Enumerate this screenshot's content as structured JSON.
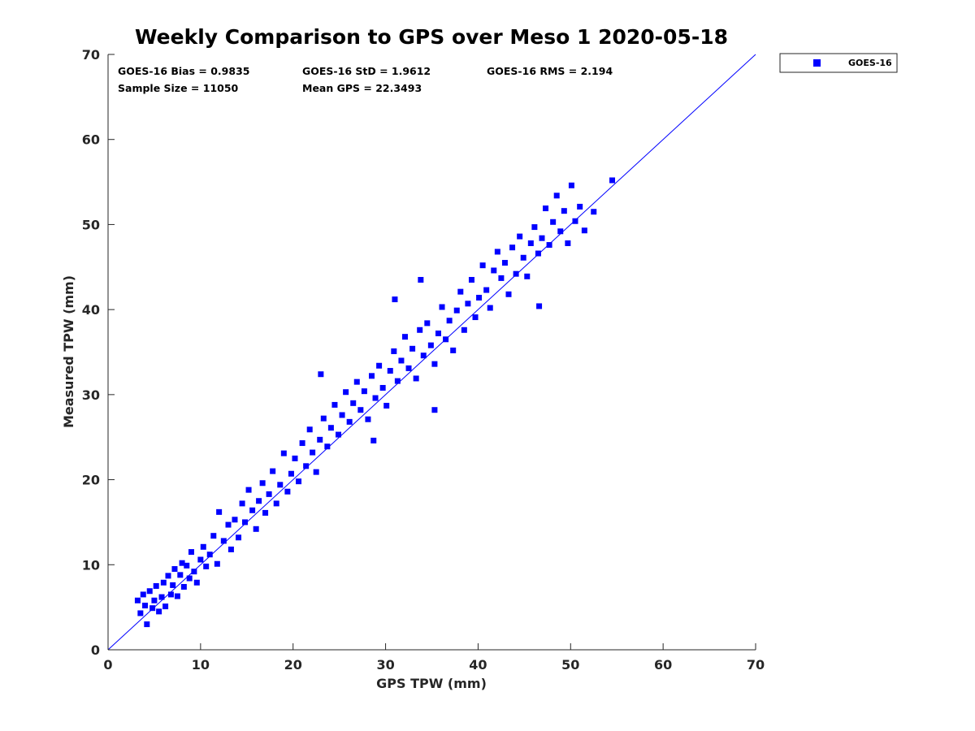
{
  "chart_data": {
    "type": "scatter",
    "title": "Weekly Comparison to GPS over Meso 1 2020-05-18",
    "xlabel": "GPS TPW (mm)",
    "ylabel": "Measured TPW (mm)",
    "xlim": [
      0,
      70
    ],
    "ylim": [
      0,
      70
    ],
    "xticks": [
      "0",
      "10",
      "20",
      "30",
      "40",
      "50",
      "60",
      "70"
    ],
    "yticks": [
      "0",
      "10",
      "20",
      "30",
      "40",
      "50",
      "60",
      "70"
    ],
    "grid": false,
    "legend_position": "outside top-right",
    "stats": [
      "GOES-16 Bias = 0.9835",
      "GOES-16 StD = 1.9612",
      "GOES-16 RMS = 2.194",
      "Sample Size = 11050",
      "Mean GPS = 22.3493"
    ],
    "reference_line": {
      "type": "one-to-one",
      "from": [
        0,
        0
      ],
      "to": [
        70,
        70
      ],
      "color": "#0000ff"
    },
    "series": [
      {
        "name": "GOES-16",
        "color": "#0000ff",
        "marker": "square",
        "points": [
          [
            3.2,
            5.8
          ],
          [
            3.5,
            4.3
          ],
          [
            3.8,
            6.5
          ],
          [
            4.0,
            5.2
          ],
          [
            4.2,
            3.0
          ],
          [
            4.5,
            6.9
          ],
          [
            4.8,
            4.9
          ],
          [
            5.0,
            5.8
          ],
          [
            5.2,
            7.5
          ],
          [
            5.5,
            4.5
          ],
          [
            5.8,
            6.2
          ],
          [
            6.0,
            7.9
          ],
          [
            6.2,
            5.1
          ],
          [
            6.5,
            8.7
          ],
          [
            6.8,
            6.5
          ],
          [
            7.0,
            7.6
          ],
          [
            7.2,
            9.5
          ],
          [
            7.5,
            6.3
          ],
          [
            7.8,
            8.8
          ],
          [
            8.0,
            10.2
          ],
          [
            8.2,
            7.4
          ],
          [
            8.5,
            9.9
          ],
          [
            8.8,
            8.4
          ],
          [
            9.0,
            11.5
          ],
          [
            9.3,
            9.2
          ],
          [
            9.6,
            7.9
          ],
          [
            10.0,
            10.6
          ],
          [
            10.3,
            12.1
          ],
          [
            10.6,
            9.8
          ],
          [
            11.0,
            11.2
          ],
          [
            11.4,
            13.4
          ],
          [
            11.8,
            10.1
          ],
          [
            12.0,
            16.2
          ],
          [
            12.5,
            12.8
          ],
          [
            13.0,
            14.7
          ],
          [
            13.3,
            11.8
          ],
          [
            13.7,
            15.3
          ],
          [
            14.1,
            13.2
          ],
          [
            14.5,
            17.2
          ],
          [
            14.8,
            15.0
          ],
          [
            15.2,
            18.8
          ],
          [
            15.6,
            16.4
          ],
          [
            16.0,
            14.2
          ],
          [
            16.3,
            17.5
          ],
          [
            16.7,
            19.6
          ],
          [
            17.0,
            16.1
          ],
          [
            17.4,
            18.3
          ],
          [
            17.8,
            21.0
          ],
          [
            18.2,
            17.2
          ],
          [
            18.6,
            19.4
          ],
          [
            19.0,
            23.1
          ],
          [
            19.4,
            18.6
          ],
          [
            19.8,
            20.7
          ],
          [
            20.2,
            22.5
          ],
          [
            20.6,
            19.8
          ],
          [
            21.0,
            24.3
          ],
          [
            21.4,
            21.6
          ],
          [
            21.8,
            25.9
          ],
          [
            22.1,
            23.2
          ],
          [
            22.5,
            20.9
          ],
          [
            22.9,
            24.7
          ],
          [
            23.3,
            27.2
          ],
          [
            23.7,
            23.9
          ],
          [
            24.1,
            26.1
          ],
          [
            24.5,
            28.8
          ],
          [
            24.9,
            25.3
          ],
          [
            25.3,
            27.6
          ],
          [
            25.7,
            30.3
          ],
          [
            26.1,
            26.8
          ],
          [
            26.5,
            29.0
          ],
          [
            26.9,
            31.5
          ],
          [
            27.3,
            28.2
          ],
          [
            27.7,
            30.4
          ],
          [
            28.1,
            27.1
          ],
          [
            28.5,
            32.2
          ],
          [
            28.9,
            29.6
          ],
          [
            29.3,
            33.4
          ],
          [
            29.7,
            30.8
          ],
          [
            30.1,
            28.7
          ],
          [
            30.5,
            32.8
          ],
          [
            30.9,
            35.1
          ],
          [
            31.3,
            31.6
          ],
          [
            31.7,
            34.0
          ],
          [
            32.1,
            36.8
          ],
          [
            32.5,
            33.1
          ],
          [
            32.9,
            35.4
          ],
          [
            33.3,
            31.9
          ],
          [
            33.7,
            37.6
          ],
          [
            34.1,
            34.6
          ],
          [
            34.5,
            38.4
          ],
          [
            34.9,
            35.8
          ],
          [
            35.3,
            33.6
          ],
          [
            35.7,
            37.2
          ],
          [
            36.1,
            40.3
          ],
          [
            36.5,
            36.5
          ],
          [
            36.9,
            38.7
          ],
          [
            37.3,
            35.2
          ],
          [
            37.7,
            39.9
          ],
          [
            38.1,
            42.1
          ],
          [
            38.5,
            37.6
          ],
          [
            38.9,
            40.7
          ],
          [
            39.3,
            43.5
          ],
          [
            39.7,
            39.1
          ],
          [
            40.1,
            41.4
          ],
          [
            40.5,
            45.2
          ],
          [
            40.9,
            42.3
          ],
          [
            41.3,
            40.2
          ],
          [
            41.7,
            44.6
          ],
          [
            42.1,
            46.8
          ],
          [
            42.5,
            43.7
          ],
          [
            42.9,
            45.5
          ],
          [
            43.3,
            41.8
          ],
          [
            43.7,
            47.3
          ],
          [
            44.1,
            44.2
          ],
          [
            44.5,
            48.6
          ],
          [
            44.9,
            46.1
          ],
          [
            45.3,
            43.9
          ],
          [
            45.7,
            47.8
          ],
          [
            46.1,
            49.7
          ],
          [
            46.5,
            46.6
          ],
          [
            46.9,
            48.4
          ],
          [
            47.3,
            51.9
          ],
          [
            47.7,
            47.6
          ],
          [
            48.1,
            50.3
          ],
          [
            48.5,
            53.4
          ],
          [
            48.9,
            49.2
          ],
          [
            49.3,
            51.6
          ],
          [
            49.7,
            47.8
          ],
          [
            50.1,
            54.6
          ],
          [
            50.5,
            50.4
          ],
          [
            51.0,
            52.1
          ],
          [
            51.5,
            49.3
          ],
          [
            52.5,
            51.5
          ],
          [
            54.5,
            55.2
          ],
          [
            23.0,
            32.4
          ],
          [
            28.7,
            24.6
          ],
          [
            35.3,
            28.2
          ],
          [
            46.6,
            40.4
          ],
          [
            33.8,
            43.5
          ],
          [
            31.0,
            41.2
          ]
        ]
      }
    ]
  }
}
